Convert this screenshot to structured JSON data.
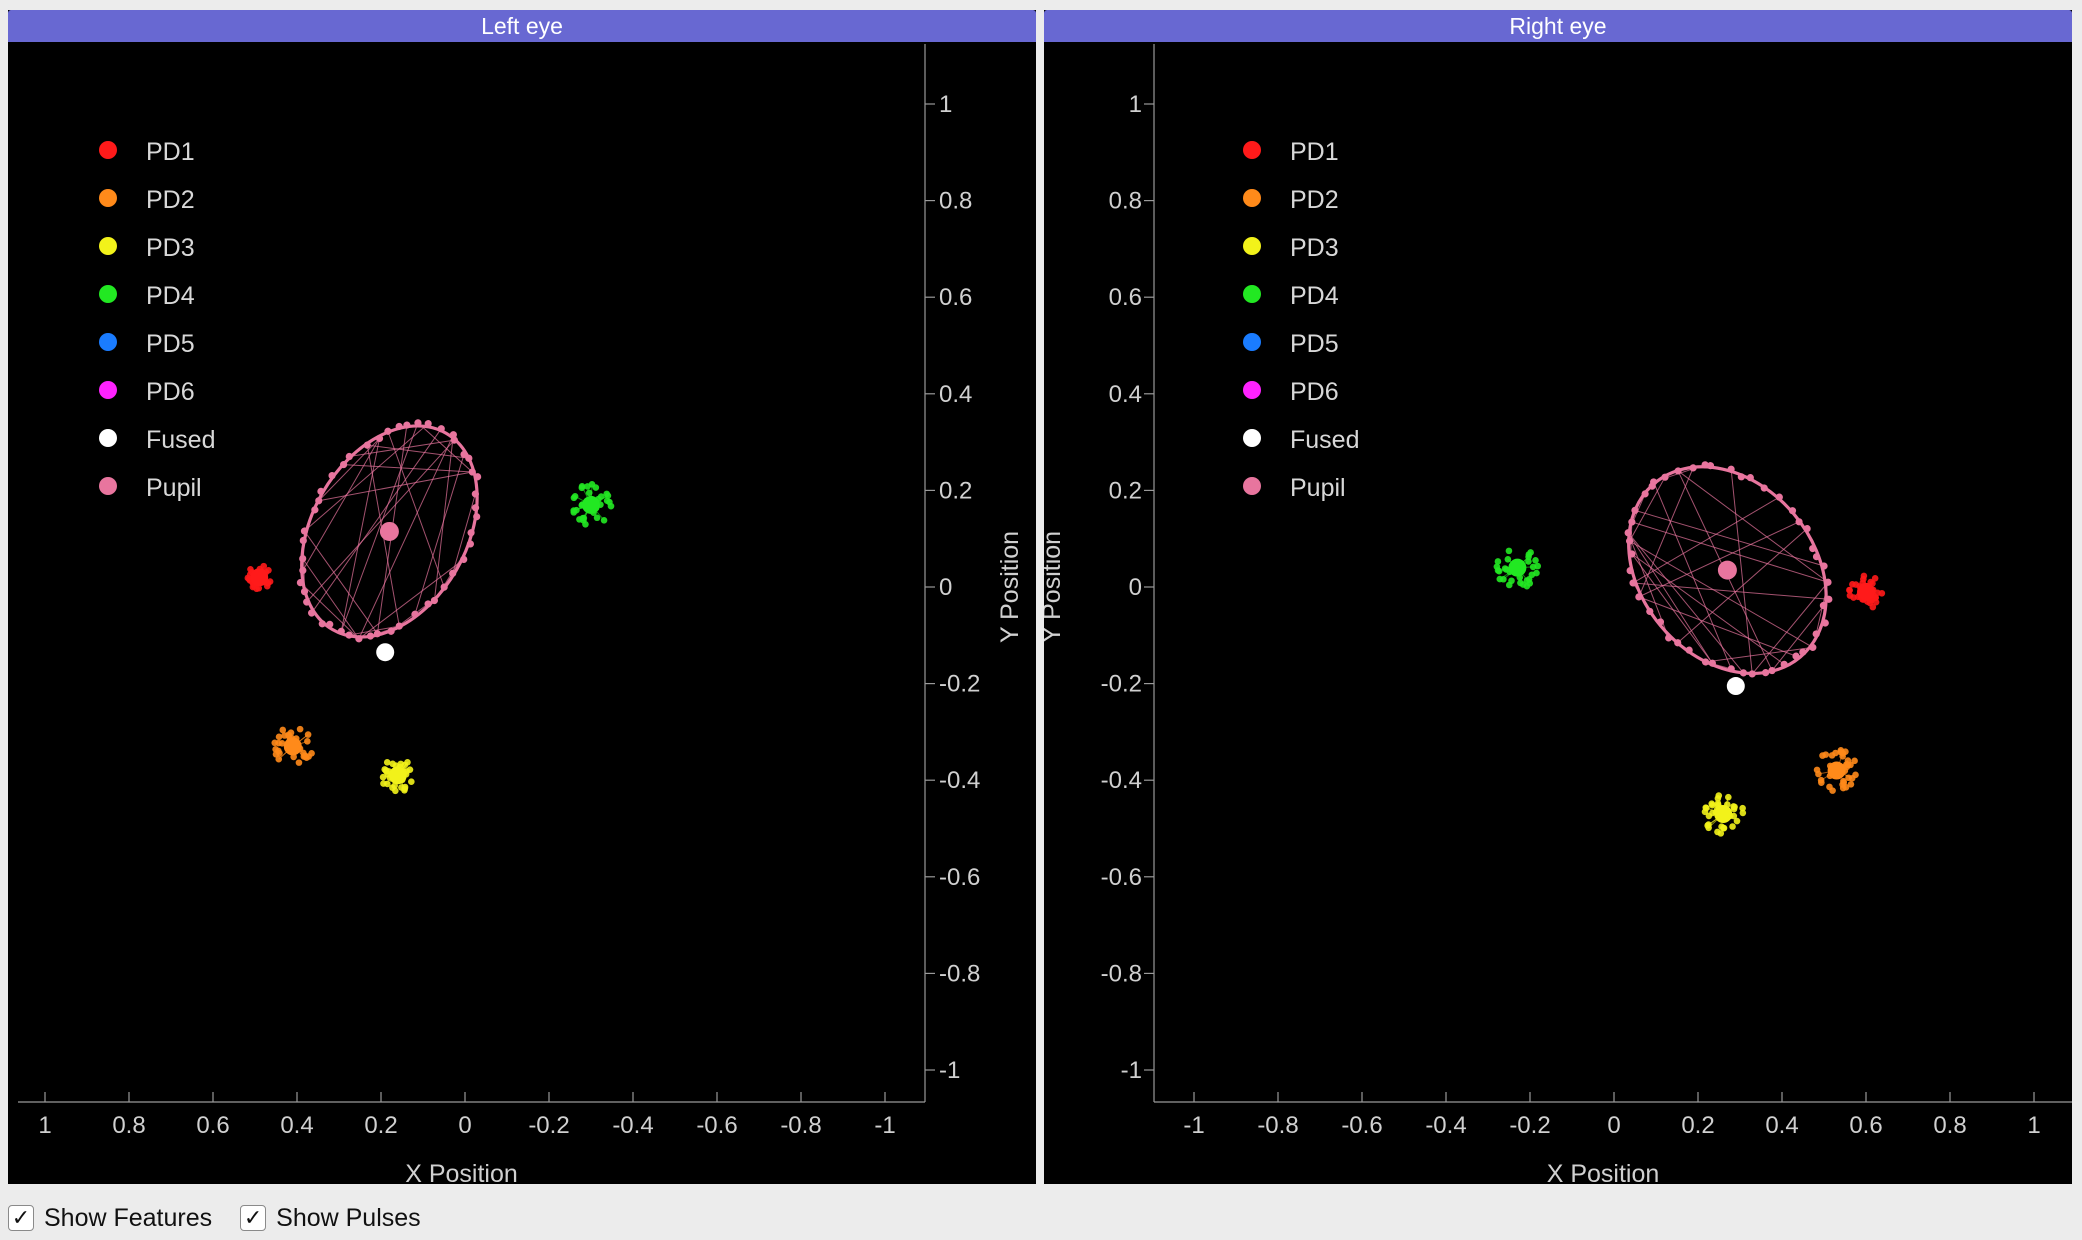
{
  "panels": [
    {
      "title": "Left eye",
      "x_label": "X Position",
      "y_label": "Y Position"
    },
    {
      "title": "Right eye",
      "x_label": "X Position",
      "y_label": "Y Position"
    }
  ],
  "legend": [
    {
      "label": "PD1",
      "color": "#ff1a1a"
    },
    {
      "label": "PD2",
      "color": "#ff8a1a"
    },
    {
      "label": "PD3",
      "color": "#f2f21a"
    },
    {
      "label": "PD4",
      "color": "#22e822"
    },
    {
      "label": "PD5",
      "color": "#1a7cff"
    },
    {
      "label": "PD6",
      "color": "#ff22ff"
    },
    {
      "label": "Fused",
      "color": "#ffffff"
    },
    {
      "label": "Pupil",
      "color": "#e8759e"
    }
  ],
  "controls": {
    "show_features_label": "Show Features",
    "show_features_checked": true,
    "show_pulses_label": "Show Pulses",
    "show_pulses_checked": true
  },
  "chart_data": [
    {
      "type": "scatter",
      "title": "Left eye",
      "xlabel": "X Position",
      "ylabel": "Y Position",
      "xlim": [
        1.1,
        -1.1
      ],
      "ylim": [
        -1.1,
        1.1
      ],
      "x_reversed": true,
      "y_axis_side": "right",
      "xticks": [
        "1",
        "0.8",
        "0.6",
        "0.4",
        "0.2",
        "0",
        "-0.2",
        "-0.4",
        "-0.6",
        "-0.8",
        "-1"
      ],
      "yticks": [
        "1",
        "0.8",
        "0.6",
        "0.4",
        "0.2",
        "0",
        "-0.2",
        "-0.4",
        "-0.6",
        "-0.8",
        "-1"
      ],
      "legend_position": "top-left",
      "series": [
        {
          "name": "PD1",
          "x": 0.49,
          "y": 0.02,
          "spread": 0.03
        },
        {
          "name": "PD2",
          "x": 0.41,
          "y": -0.33,
          "spread": 0.05
        },
        {
          "name": "PD3",
          "x": 0.16,
          "y": -0.39,
          "spread": 0.04
        },
        {
          "name": "PD4",
          "x": -0.3,
          "y": 0.17,
          "spread": 0.05
        },
        {
          "name": "Fused",
          "x": 0.19,
          "y": -0.135
        },
        {
          "name": "Pupil",
          "x": 0.18,
          "y": 0.115
        }
      ],
      "pupil_ellipse": {
        "cx": 0.18,
        "cy": 0.115,
        "semi_major": 0.27,
        "semi_minor": 0.16,
        "rotation_deg": -30
      }
    },
    {
      "type": "scatter",
      "title": "Right eye",
      "xlabel": "X Position",
      "ylabel": "Y Position",
      "xlim": [
        -1.1,
        1.1
      ],
      "ylim": [
        -1.1,
        1.1
      ],
      "x_reversed": false,
      "y_axis_side": "left",
      "xticks": [
        "-1",
        "-0.8",
        "-0.6",
        "-0.4",
        "-0.2",
        "0",
        "0.2",
        "0.4",
        "0.6",
        "0.8",
        "1"
      ],
      "yticks": [
        "1",
        "0.8",
        "0.6",
        "0.4",
        "0.2",
        "0",
        "-0.2",
        "-0.4",
        "-0.6",
        "-0.8",
        "-1"
      ],
      "legend_position": "top-left",
      "series": [
        {
          "name": "PD1",
          "x": 0.6,
          "y": -0.01,
          "spread": 0.04
        },
        {
          "name": "PD2",
          "x": 0.53,
          "y": -0.38,
          "spread": 0.05
        },
        {
          "name": "PD3",
          "x": 0.26,
          "y": -0.47,
          "spread": 0.05
        },
        {
          "name": "PD4",
          "x": -0.23,
          "y": 0.04,
          "spread": 0.05
        },
        {
          "name": "Fused",
          "x": 0.29,
          "y": -0.205
        },
        {
          "name": "Pupil",
          "x": 0.27,
          "y": 0.035
        }
      ],
      "pupil_ellipse": {
        "cx": 0.27,
        "cy": 0.035,
        "semi_major": 0.27,
        "semi_minor": 0.18,
        "rotation_deg": -50
      }
    }
  ]
}
